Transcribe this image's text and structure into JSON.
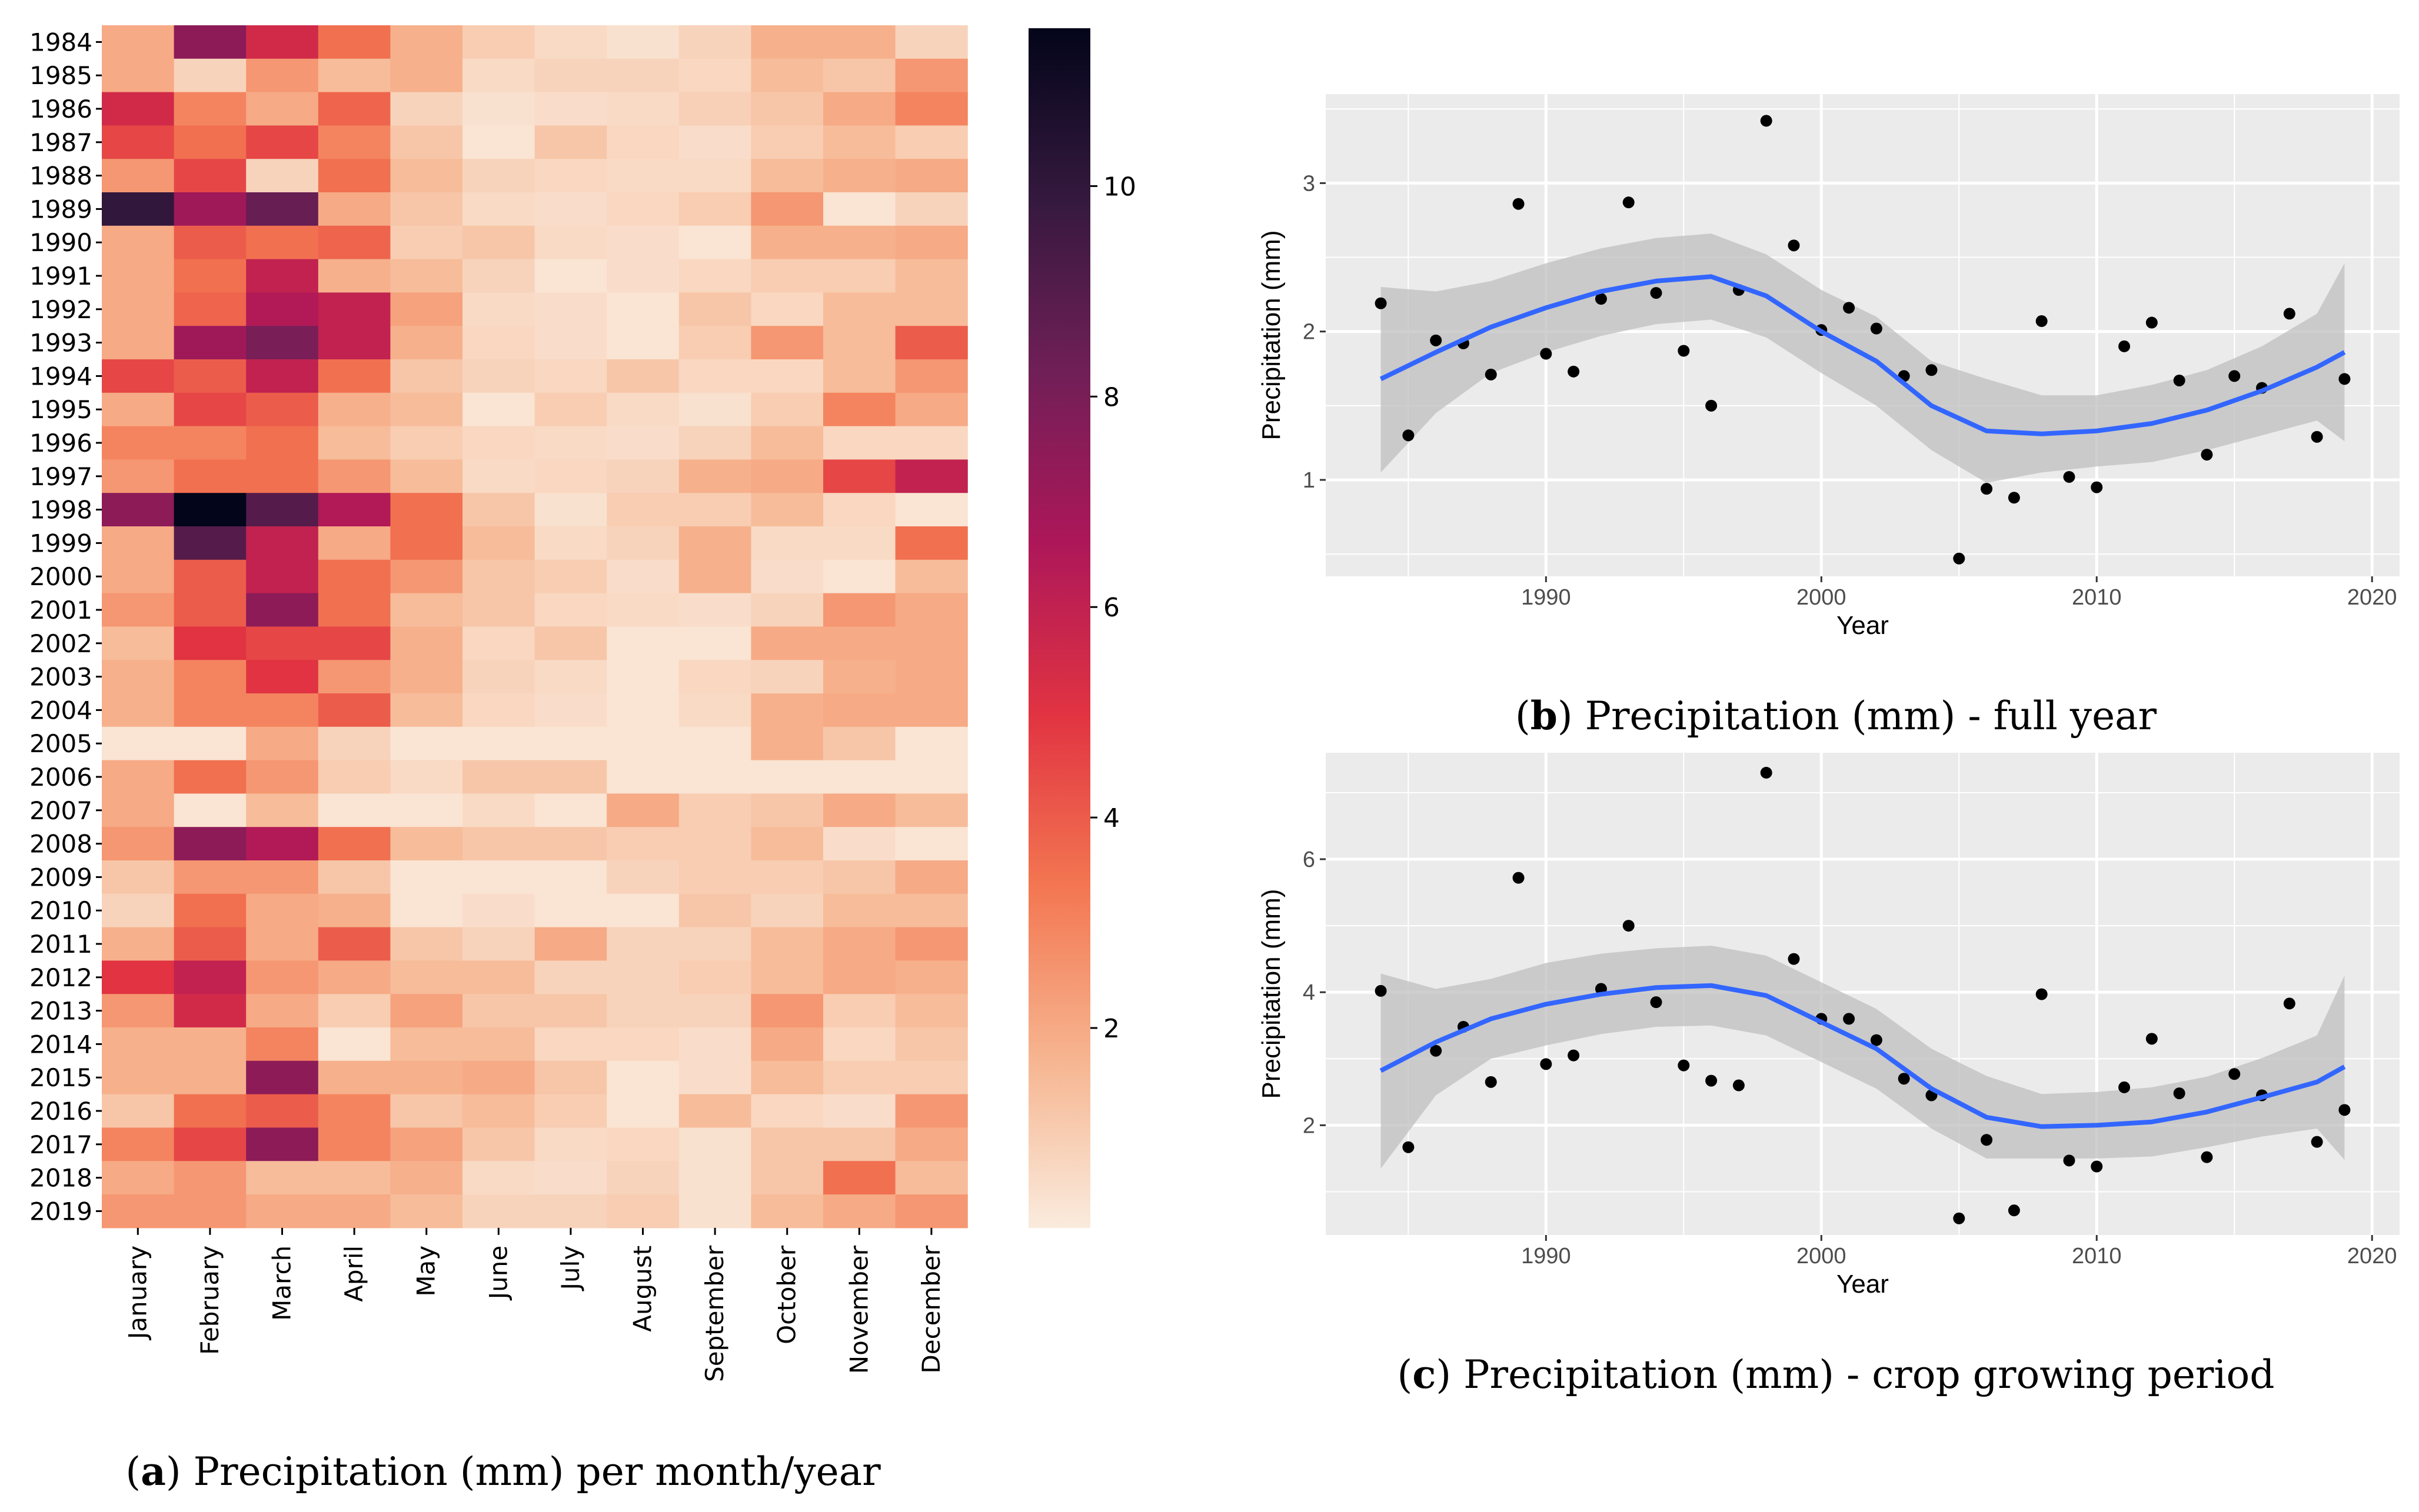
{
  "colors": {
    "stops": [
      "#faebdd",
      "#f6b48f",
      "#f37651",
      "#e13342",
      "#ad1759",
      "#701f57",
      "#35193e",
      "#03051a"
    ],
    "panel_bg": "#ebebeb",
    "grid": "#ffffff",
    "smooth": "#3366ff",
    "band": "#bfbfbf",
    "point": "#000000"
  },
  "chart_data": [
    {
      "type": "heatmap",
      "caption_letter": "a",
      "caption_text": "Precipitation (mm) per month/year",
      "months": [
        "January",
        "February",
        "March",
        "April",
        "May",
        "June",
        "July",
        "August",
        "September",
        "October",
        "November",
        "December"
      ],
      "years": [
        "1984",
        "1985",
        "1986",
        "1987",
        "1988",
        "1989",
        "1990",
        "1991",
        "1992",
        "1993",
        "1994",
        "1995",
        "1996",
        "1997",
        "1998",
        "1999",
        "2000",
        "2001",
        "2002",
        "2003",
        "2004",
        "2005",
        "2006",
        "2007",
        "2008",
        "2009",
        "2010",
        "2011",
        "2012",
        "2013",
        "2014",
        "2015",
        "2016",
        "2017",
        "2018",
        "2019"
      ],
      "values": [
        [
          2.0,
          7.5,
          5.5,
          3.5,
          1.8,
          1.0,
          0.6,
          0.4,
          0.8,
          1.8,
          1.8,
          0.8
        ],
        [
          2.0,
          0.8,
          2.5,
          1.5,
          1.8,
          0.6,
          0.8,
          0.8,
          0.7,
          1.5,
          1.2,
          2.5
        ],
        [
          5.5,
          3.0,
          2.0,
          3.8,
          0.8,
          0.4,
          0.5,
          0.6,
          0.9,
          1.2,
          2.0,
          3.0
        ],
        [
          4.5,
          3.5,
          4.5,
          3.0,
          1.2,
          0.3,
          1.2,
          0.7,
          0.5,
          1.0,
          1.5,
          1.0
        ],
        [
          2.5,
          4.5,
          0.8,
          3.5,
          1.5,
          0.8,
          0.7,
          0.6,
          0.6,
          1.5,
          1.8,
          2.0
        ],
        [
          10.0,
          7.0,
          8.5,
          2.0,
          1.2,
          0.6,
          0.5,
          0.7,
          1.0,
          2.5,
          0.3,
          0.8
        ],
        [
          2.0,
          4.0,
          3.5,
          3.8,
          1.0,
          1.2,
          0.6,
          0.5,
          0.3,
          1.8,
          1.8,
          2.0
        ],
        [
          2.0,
          3.5,
          6.0,
          1.8,
          1.5,
          0.8,
          0.3,
          0.5,
          0.7,
          1.0,
          1.0,
          1.5
        ],
        [
          2.0,
          3.8,
          6.5,
          6.0,
          2.2,
          0.6,
          0.5,
          0.3,
          1.2,
          0.7,
          1.5,
          1.5
        ],
        [
          2.0,
          7.0,
          8.0,
          6.0,
          1.8,
          0.7,
          0.5,
          0.3,
          1.0,
          2.5,
          1.5,
          4.0
        ],
        [
          4.5,
          4.0,
          6.0,
          3.5,
          1.2,
          0.8,
          0.7,
          1.2,
          0.7,
          0.7,
          1.5,
          2.5
        ],
        [
          2.0,
          4.5,
          4.0,
          1.8,
          1.5,
          0.3,
          1.0,
          0.6,
          0.4,
          1.0,
          3.0,
          2.0
        ],
        [
          3.0,
          3.0,
          3.5,
          1.5,
          1.0,
          0.7,
          0.6,
          0.5,
          0.8,
          1.5,
          0.7,
          0.7
        ],
        [
          2.5,
          3.5,
          3.5,
          2.5,
          1.5,
          0.6,
          0.7,
          0.8,
          1.8,
          2.0,
          4.5,
          6.0
        ],
        [
          7.5,
          11.5,
          9.0,
          6.5,
          3.5,
          1.2,
          0.4,
          1.0,
          1.0,
          1.5,
          0.7,
          0.3
        ],
        [
          2.0,
          9.0,
          6.0,
          2.0,
          3.5,
          1.5,
          0.6,
          0.8,
          1.8,
          0.6,
          0.6,
          3.5
        ],
        [
          2.0,
          4.0,
          6.0,
          3.5,
          2.5,
          1.2,
          1.0,
          0.5,
          1.8,
          0.5,
          0.3,
          1.5
        ],
        [
          2.5,
          4.0,
          7.5,
          3.5,
          1.5,
          1.2,
          0.7,
          0.6,
          0.5,
          0.8,
          2.5,
          2.0
        ],
        [
          1.5,
          5.0,
          4.5,
          4.5,
          1.8,
          0.7,
          1.2,
          0.3,
          0.3,
          2.0,
          2.0,
          2.0
        ],
        [
          1.8,
          3.0,
          5.0,
          2.5,
          1.8,
          0.8,
          0.6,
          0.3,
          0.7,
          0.8,
          1.8,
          2.0
        ],
        [
          1.8,
          3.0,
          3.0,
          4.0,
          1.5,
          0.7,
          0.5,
          0.3,
          0.6,
          1.8,
          2.0,
          2.0
        ],
        [
          0.3,
          0.3,
          2.0,
          0.8,
          0.3,
          0.3,
          0.3,
          0.3,
          0.3,
          1.8,
          1.2,
          0.3
        ],
        [
          2.0,
          3.5,
          2.5,
          1.0,
          0.6,
          1.2,
          1.2,
          0.3,
          0.3,
          0.3,
          0.3,
          0.3
        ],
        [
          2.0,
          0.3,
          1.5,
          0.3,
          0.3,
          0.6,
          0.3,
          2.0,
          1.0,
          1.2,
          2.0,
          1.5
        ],
        [
          2.5,
          7.5,
          6.5,
          3.5,
          1.5,
          1.2,
          1.2,
          1.0,
          1.0,
          1.5,
          0.5,
          0.3
        ],
        [
          1.2,
          2.5,
          2.5,
          1.2,
          0.3,
          0.3,
          0.3,
          0.8,
          1.0,
          1.0,
          1.2,
          2.0
        ],
        [
          0.8,
          3.5,
          2.0,
          1.8,
          0.3,
          0.5,
          0.3,
          0.3,
          1.2,
          0.8,
          1.5,
          1.5
        ],
        [
          1.8,
          4.0,
          2.0,
          4.0,
          1.2,
          0.8,
          2.0,
          0.8,
          0.8,
          1.5,
          2.0,
          2.5
        ],
        [
          5.0,
          6.0,
          2.5,
          2.0,
          1.5,
          1.5,
          0.8,
          0.8,
          1.0,
          1.5,
          2.0,
          1.8
        ],
        [
          2.5,
          5.5,
          2.0,
          1.0,
          2.2,
          1.2,
          1.2,
          0.8,
          0.8,
          2.5,
          1.0,
          1.5
        ],
        [
          1.8,
          1.8,
          3.0,
          0.3,
          1.5,
          1.5,
          0.7,
          0.7,
          0.5,
          2.0,
          0.7,
          1.2
        ],
        [
          1.8,
          1.8,
          7.5,
          1.8,
          1.8,
          2.0,
          1.2,
          0.3,
          0.5,
          1.5,
          1.0,
          1.0
        ],
        [
          1.2,
          3.5,
          4.0,
          3.0,
          1.2,
          1.5,
          1.0,
          0.3,
          1.5,
          0.7,
          0.5,
          2.5
        ],
        [
          3.0,
          4.5,
          7.5,
          3.0,
          2.2,
          1.2,
          0.6,
          0.7,
          0.4,
          1.2,
          1.2,
          2.0
        ],
        [
          2.0,
          2.5,
          1.5,
          1.5,
          1.8,
          0.6,
          0.5,
          0.8,
          0.4,
          1.2,
          3.5,
          1.5
        ],
        [
          2.5,
          2.5,
          2.0,
          2.0,
          1.5,
          0.8,
          0.8,
          1.0,
          0.4,
          1.5,
          2.0,
          2.5
        ]
      ],
      "colorbar_ticks": [
        2,
        4,
        6,
        8,
        10
      ],
      "vmin": 0.1,
      "vmax": 11.5
    },
    {
      "type": "scatter",
      "caption_letter": "b",
      "caption_text": "Precipitation (mm) - full year",
      "xlabel": "Year",
      "ylabel": "Precipitation (mm)",
      "xlim": [
        1982,
        2021
      ],
      "ylim": [
        0.35,
        3.6
      ],
      "xticks": [
        1990,
        2000,
        2010,
        2020
      ],
      "yticks": [
        1,
        2,
        3
      ],
      "x": [
        1984,
        1985,
        1986,
        1987,
        1988,
        1989,
        1990,
        1991,
        1992,
        1993,
        1994,
        1995,
        1996,
        1997,
        1998,
        1999,
        2000,
        2001,
        2002,
        2003,
        2004,
        2005,
        2006,
        2007,
        2008,
        2009,
        2010,
        2011,
        2012,
        2013,
        2014,
        2015,
        2016,
        2017,
        2018,
        2019
      ],
      "y": [
        2.19,
        1.3,
        1.94,
        1.92,
        1.71,
        2.86,
        1.85,
        1.73,
        2.22,
        2.87,
        2.26,
        1.87,
        1.5,
        2.28,
        3.42,
        2.58,
        2.01,
        2.16,
        2.02,
        1.7,
        1.74,
        0.47,
        0.94,
        0.88,
        2.07,
        1.02,
        0.95,
        1.9,
        2.06,
        1.67,
        1.17,
        1.7,
        1.62,
        2.12,
        1.29,
        1.68
      ],
      "smooth_x": [
        1984,
        1986,
        1988,
        1990,
        1992,
        1994,
        1996,
        1998,
        2000,
        2002,
        2004,
        2006,
        2008,
        2010,
        2012,
        2014,
        2016,
        2018,
        2019
      ],
      "smooth_y": [
        1.68,
        1.86,
        2.03,
        2.16,
        2.27,
        2.34,
        2.37,
        2.24,
        2.0,
        1.8,
        1.5,
        1.33,
        1.31,
        1.33,
        1.38,
        1.47,
        1.6,
        1.76,
        1.86
      ],
      "smooth_lo": [
        1.05,
        1.45,
        1.72,
        1.86,
        1.97,
        2.05,
        2.08,
        1.96,
        1.72,
        1.5,
        1.2,
        0.98,
        1.05,
        1.09,
        1.12,
        1.2,
        1.3,
        1.4,
        1.26
      ],
      "smooth_hi": [
        2.3,
        2.27,
        2.34,
        2.46,
        2.56,
        2.63,
        2.66,
        2.52,
        2.28,
        2.1,
        1.8,
        1.68,
        1.57,
        1.57,
        1.64,
        1.74,
        1.9,
        2.12,
        2.46
      ]
    },
    {
      "type": "scatter",
      "caption_letter": "c",
      "caption_text": "Precipitation (mm) - crop growing period",
      "xlabel": "Year",
      "ylabel": "Precipitation (mm)",
      "xlim": [
        1982,
        2021
      ],
      "ylim": [
        0.35,
        7.6
      ],
      "xticks": [
        1990,
        2000,
        2010,
        2020
      ],
      "yticks": [
        2,
        4,
        6
      ],
      "x": [
        1984,
        1985,
        1986,
        1987,
        1988,
        1989,
        1990,
        1991,
        1992,
        1993,
        1994,
        1995,
        1996,
        1997,
        1998,
        1999,
        2000,
        2001,
        2002,
        2003,
        2004,
        2005,
        2006,
        2007,
        2008,
        2009,
        2010,
        2011,
        2012,
        2013,
        2014,
        2015,
        2016,
        2017,
        2018,
        2019
      ],
      "y": [
        4.02,
        1.67,
        3.12,
        3.48,
        2.65,
        5.72,
        2.92,
        3.05,
        4.05,
        5.0,
        3.85,
        2.9,
        2.67,
        2.6,
        7.3,
        4.5,
        3.6,
        3.6,
        3.28,
        2.7,
        2.45,
        0.6,
        1.78,
        0.72,
        3.97,
        1.47,
        1.38,
        2.57,
        3.3,
        2.48,
        1.52,
        2.77,
        2.45,
        3.83,
        1.75,
        2.23
      ],
      "smooth_x": [
        1984,
        1986,
        1988,
        1990,
        1992,
        1994,
        1996,
        1998,
        2000,
        2002,
        2004,
        2006,
        2008,
        2010,
        2012,
        2014,
        2016,
        2018,
        2019
      ],
      "smooth_y": [
        2.82,
        3.25,
        3.6,
        3.82,
        3.97,
        4.07,
        4.1,
        3.95,
        3.55,
        3.15,
        2.55,
        2.12,
        1.98,
        2.0,
        2.05,
        2.2,
        2.42,
        2.65,
        2.88
      ],
      "smooth_lo": [
        1.35,
        2.45,
        3.0,
        3.2,
        3.37,
        3.48,
        3.5,
        3.35,
        2.95,
        2.55,
        1.95,
        1.5,
        1.5,
        1.5,
        1.53,
        1.67,
        1.83,
        1.95,
        1.48
      ],
      "smooth_hi": [
        4.28,
        4.05,
        4.2,
        4.44,
        4.58,
        4.66,
        4.7,
        4.55,
        4.15,
        3.75,
        3.15,
        2.74,
        2.47,
        2.5,
        2.57,
        2.73,
        3.01,
        3.35,
        4.25
      ]
    }
  ]
}
